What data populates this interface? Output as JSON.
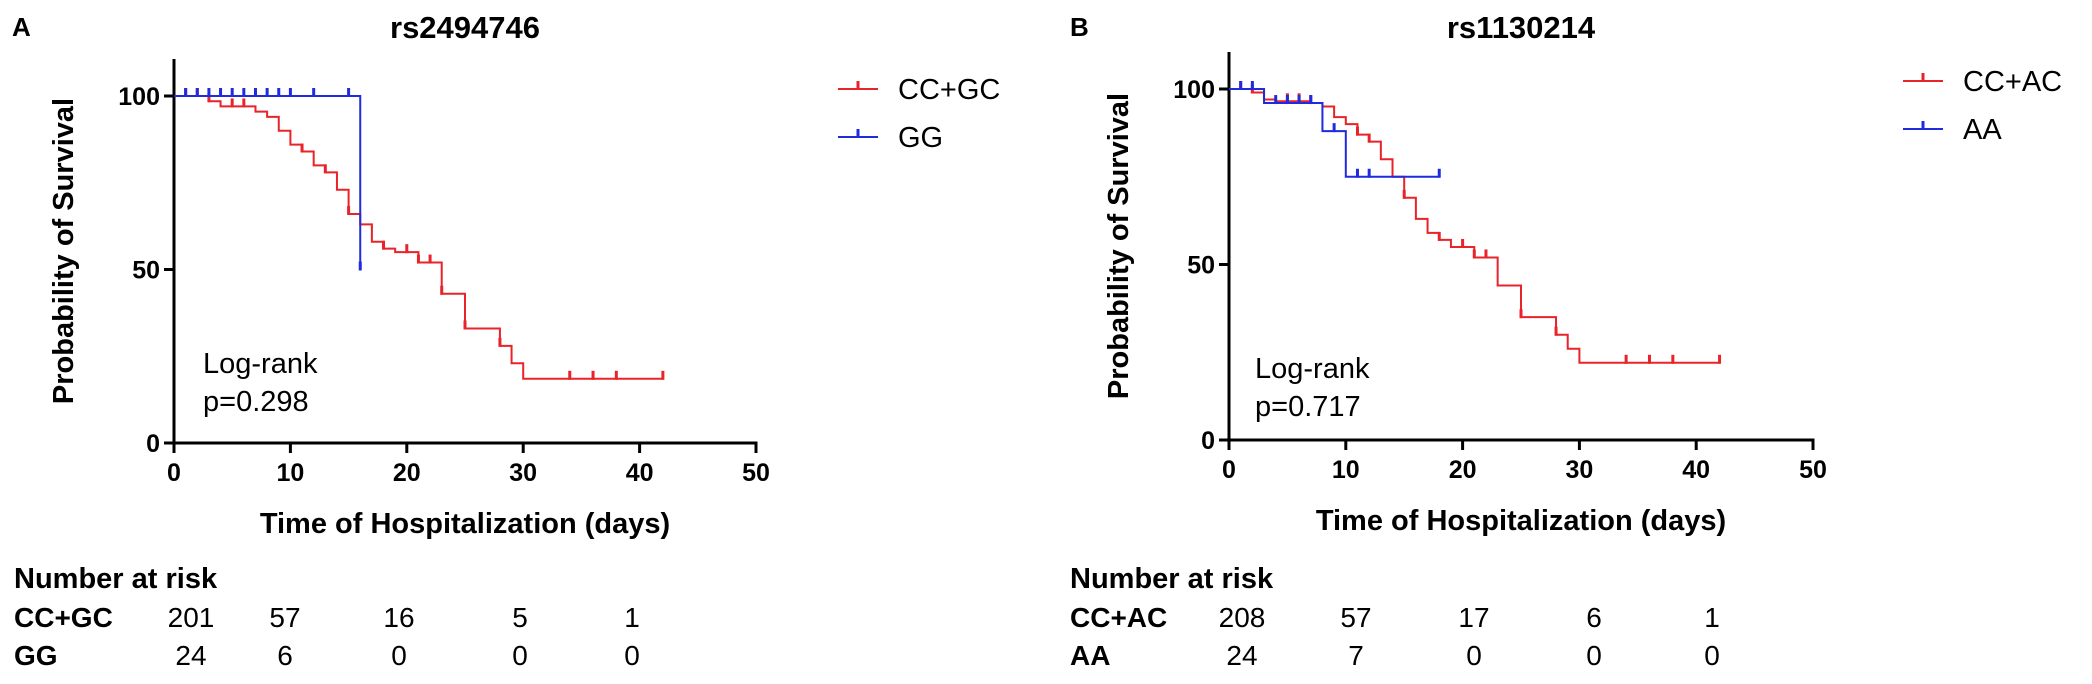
{
  "chart_data": [
    {
      "type": "line",
      "panel_label": "A",
      "title": "rs2494746",
      "xlabel": "Time of Hospitalization (days)",
      "ylabel": "Probability of Survival",
      "xlim": [
        0,
        50
      ],
      "ylim": [
        0,
        100
      ],
      "xticks": [
        0,
        10,
        20,
        30,
        40,
        50
      ],
      "yticks": [
        0,
        50,
        100
      ],
      "legend_position": "right",
      "annotation": [
        "Log-rank",
        "p=0.298"
      ],
      "series": [
        {
          "name": "CC+GC",
          "color": "#e8232a",
          "steps": [
            [
              0,
              100
            ],
            [
              3,
              98.5
            ],
            [
              4,
              97
            ],
            [
              7,
              95.5
            ],
            [
              8,
              94
            ],
            [
              9,
              90
            ],
            [
              10,
              86
            ],
            [
              11,
              84
            ],
            [
              12,
              80
            ],
            [
              13,
              78
            ],
            [
              14,
              73
            ],
            [
              15,
              66
            ],
            [
              16,
              63
            ],
            [
              17,
              58
            ],
            [
              18,
              56
            ],
            [
              19,
              55
            ],
            [
              21,
              52
            ],
            [
              23,
              43
            ],
            [
              25,
              33
            ],
            [
              28,
              28
            ],
            [
              29,
              23
            ],
            [
              30,
              18.5
            ],
            [
              42,
              18.5
            ]
          ],
          "censored": [
            [
              1,
              100
            ],
            [
              2,
              100
            ],
            [
              3,
              98.5
            ],
            [
              5,
              97
            ],
            [
              6,
              97
            ],
            [
              11,
              84
            ],
            [
              13,
              78
            ],
            [
              15,
              66
            ],
            [
              18,
              56
            ],
            [
              20,
              55
            ],
            [
              21,
              52
            ],
            [
              22,
              52
            ],
            [
              23,
              43
            ],
            [
              25,
              33
            ],
            [
              28,
              28
            ],
            [
              34,
              18.5
            ],
            [
              36,
              18.5
            ],
            [
              38,
              18.5
            ],
            [
              42,
              18.5
            ]
          ]
        },
        {
          "name": "GG",
          "color": "#1f2bdc",
          "steps": [
            [
              0,
              100
            ],
            [
              16,
              100
            ],
            [
              16,
              50
            ]
          ],
          "censored": [
            [
              1,
              100
            ],
            [
              2,
              100
            ],
            [
              3,
              100
            ],
            [
              4,
              100
            ],
            [
              5,
              100
            ],
            [
              6,
              100
            ],
            [
              7,
              100
            ],
            [
              8,
              100
            ],
            [
              9,
              100
            ],
            [
              10,
              100
            ],
            [
              12,
              100
            ],
            [
              15,
              100
            ],
            [
              16,
              50
            ]
          ]
        }
      ],
      "risk_table": {
        "title": "Number at risk",
        "time_points": [
          0,
          10,
          20,
          30,
          40
        ],
        "rows": [
          {
            "label": "CC+GC",
            "values": [
              "201",
              "57",
              "16",
              "5",
              "1"
            ]
          },
          {
            "label": "GG",
            "values": [
              "24",
              "6",
              "0",
              "0",
              "0"
            ]
          }
        ]
      }
    },
    {
      "type": "line",
      "panel_label": "B",
      "title": "rs1130214",
      "xlabel": "Time of Hospitalization (days)",
      "ylabel": "Probability of Survival",
      "xlim": [
        0,
        50
      ],
      "ylim": [
        0,
        100
      ],
      "xticks": [
        0,
        10,
        20,
        30,
        40,
        50
      ],
      "yticks": [
        0,
        50,
        100
      ],
      "legend_position": "top-right",
      "annotation": [
        "Log-rank",
        "p=0.717"
      ],
      "series": [
        {
          "name": "CC+AC",
          "color": "#e8232a",
          "steps": [
            [
              0,
              100
            ],
            [
              2,
              99
            ],
            [
              3,
              97
            ],
            [
              4,
              96.5
            ],
            [
              7,
              96
            ],
            [
              8,
              95
            ],
            [
              9,
              92
            ],
            [
              10,
              90
            ],
            [
              11,
              87
            ],
            [
              12,
              85
            ],
            [
              13,
              80
            ],
            [
              14,
              75
            ],
            [
              15,
              69
            ],
            [
              16,
              63
            ],
            [
              17,
              59
            ],
            [
              18,
              57
            ],
            [
              19,
              55
            ],
            [
              21,
              52
            ],
            [
              23,
              44
            ],
            [
              25,
              35
            ],
            [
              28,
              30
            ],
            [
              29,
              26
            ],
            [
              30,
              22
            ],
            [
              42,
              22
            ]
          ],
          "censored": [
            [
              1,
              100
            ],
            [
              2,
              99
            ],
            [
              5,
              96.5
            ],
            [
              6,
              96.5
            ],
            [
              7,
              96
            ],
            [
              11,
              87
            ],
            [
              12,
              85
            ],
            [
              15,
              69
            ],
            [
              18,
              57
            ],
            [
              20,
              55
            ],
            [
              21,
              52
            ],
            [
              22,
              52
            ],
            [
              25,
              35
            ],
            [
              28,
              30
            ],
            [
              34,
              22
            ],
            [
              36,
              22
            ],
            [
              38,
              22
            ],
            [
              42,
              22
            ]
          ]
        },
        {
          "name": "AA",
          "color": "#1f2bdc",
          "steps": [
            [
              0,
              100
            ],
            [
              3,
              96
            ],
            [
              8,
              88
            ],
            [
              10,
              75
            ],
            [
              18,
              75
            ]
          ],
          "censored": [
            [
              1,
              100
            ],
            [
              2,
              100
            ],
            [
              4,
              96
            ],
            [
              5,
              96
            ],
            [
              6,
              96
            ],
            [
              7,
              96
            ],
            [
              9,
              88
            ],
            [
              11,
              75
            ],
            [
              12,
              75
            ],
            [
              18,
              75
            ]
          ]
        }
      ],
      "risk_table": {
        "title": "Number at risk",
        "time_points": [
          0,
          10,
          20,
          30,
          40
        ],
        "rows": [
          {
            "label": "CC+AC",
            "values": [
              "208",
              "57",
              "17",
              "6",
              "1"
            ]
          },
          {
            "label": "AA",
            "values": [
              "24",
              "7",
              "0",
              "0",
              "0"
            ]
          }
        ]
      }
    }
  ]
}
